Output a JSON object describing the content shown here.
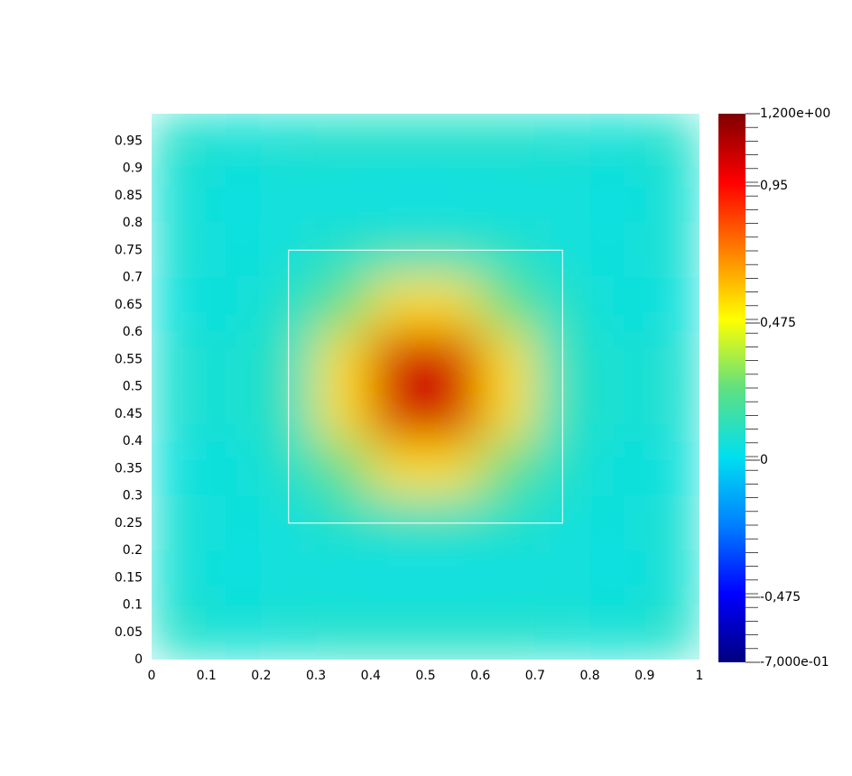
{
  "chart_data": {
    "type": "heatmap",
    "xlim": [
      0,
      1
    ],
    "ylim": [
      0,
      1
    ],
    "xticks": [
      0,
      0.1,
      0.2,
      0.3,
      0.4,
      0.5,
      0.6,
      0.7,
      0.8,
      0.9,
      1
    ],
    "yticks": [
      0,
      0.05,
      0.1,
      0.15,
      0.2,
      0.25,
      0.3,
      0.35,
      0.4,
      0.45,
      0.5,
      0.55,
      0.6,
      0.65,
      0.7,
      0.75,
      0.8,
      0.85,
      0.9,
      0.95
    ],
    "x": [
      0.05,
      0.15,
      0.25,
      0.35,
      0.45,
      0.55,
      0.65,
      0.75,
      0.85,
      0.95
    ],
    "y": [
      0.95,
      0.85,
      0.75,
      0.65,
      0.55,
      0.45,
      0.35,
      0.25,
      0.15,
      0.05
    ],
    "values": [
      [
        0.1,
        0.07,
        0.08,
        0.1,
        0.1,
        0.1,
        0.1,
        0.08,
        0.07,
        0.1
      ],
      [
        0.07,
        0.04,
        0.06,
        0.04,
        0.03,
        0.03,
        0.04,
        0.06,
        0.04,
        0.07
      ],
      [
        0.08,
        0.05,
        0.06,
        0.1,
        0.12,
        0.12,
        0.1,
        0.06,
        0.05,
        0.08
      ],
      [
        0.05,
        0.05,
        0.1,
        0.25,
        0.55,
        0.55,
        0.25,
        0.1,
        0.05,
        0.05
      ],
      [
        0.08,
        0.07,
        0.12,
        0.55,
        1.05,
        1.05,
        0.55,
        0.12,
        0.07,
        0.08
      ],
      [
        0.08,
        0.07,
        0.12,
        0.55,
        1.05,
        1.05,
        0.55,
        0.12,
        0.07,
        0.08
      ],
      [
        0.05,
        0.05,
        0.1,
        0.25,
        0.55,
        0.55,
        0.25,
        0.1,
        0.05,
        0.05
      ],
      [
        0.08,
        0.05,
        0.06,
        0.1,
        0.12,
        0.12,
        0.1,
        0.06,
        0.05,
        0.08
      ],
      [
        0.07,
        0.04,
        0.06,
        0.04,
        0.03,
        0.03,
        0.04,
        0.06,
        0.04,
        0.07
      ],
      [
        0.1,
        0.07,
        0.08,
        0.1,
        0.1,
        0.1,
        0.1,
        0.08,
        0.07,
        0.1
      ]
    ],
    "box": {
      "x": [
        0.25,
        0.75
      ],
      "y": [
        0.25,
        0.75
      ],
      "color": "#ffffff"
    },
    "colormap": [
      "#00007f",
      "#0000ff",
      "#0080ff",
      "#00e0f0",
      "#60e080",
      "#ffff00",
      "#ff8000",
      "#ff0000",
      "#7f0000"
    ],
    "clim": [
      -0.7,
      1.2
    ],
    "cticks": [
      {
        "value": 1.2,
        "label": "1,200e+00"
      },
      {
        "value": 0.95,
        "label": "0,95"
      },
      {
        "value": 0.475,
        "label": "0,475"
      },
      0,
      {
        "value": -0.475,
        "label": "-0,475"
      },
      {
        "value": -0.7,
        "label": "-7,000e-01"
      }
    ]
  }
}
